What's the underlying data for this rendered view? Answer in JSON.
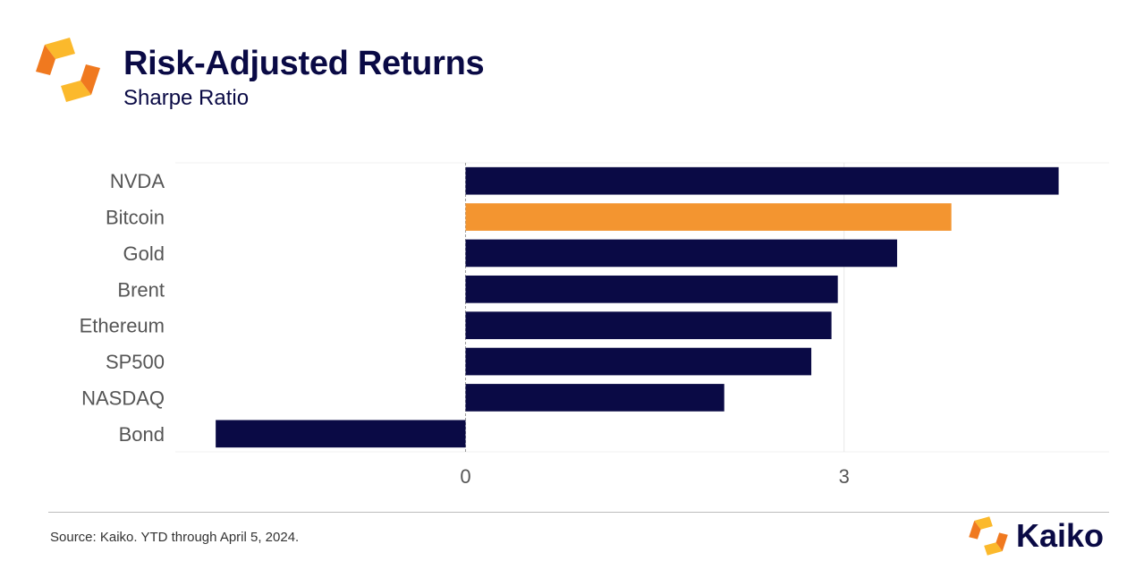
{
  "header": {
    "title": "Risk-Adjusted Returns",
    "subtitle": "Sharpe Ratio"
  },
  "footer": {
    "source": "Source: Kaiko. YTD through April 5, 2024.",
    "brand": "Kaiko"
  },
  "colors": {
    "navy": "#0a0a45",
    "orange": "#f39530",
    "logo_light": "#fbb92c",
    "logo_dark": "#f0791f"
  },
  "icons": {
    "logo": "kaiko-logo-icon",
    "brand": "kaiko-brand-icon"
  },
  "chart_data": {
    "type": "bar",
    "orientation": "horizontal",
    "title": "Risk-Adjusted Returns",
    "subtitle": "Sharpe Ratio",
    "categories": [
      "NVDA",
      "Bitcoin",
      "Gold",
      "Brent",
      "Ethereum",
      "SP500",
      "NASDAQ",
      "Bond"
    ],
    "values": [
      4.7,
      3.85,
      3.42,
      2.95,
      2.9,
      2.74,
      2.05,
      -1.98
    ],
    "highlight": "Bitcoin",
    "xlim": [
      -2.3,
      5.1
    ],
    "xticks": [
      0,
      3
    ],
    "grid": true,
    "legend": "none"
  }
}
